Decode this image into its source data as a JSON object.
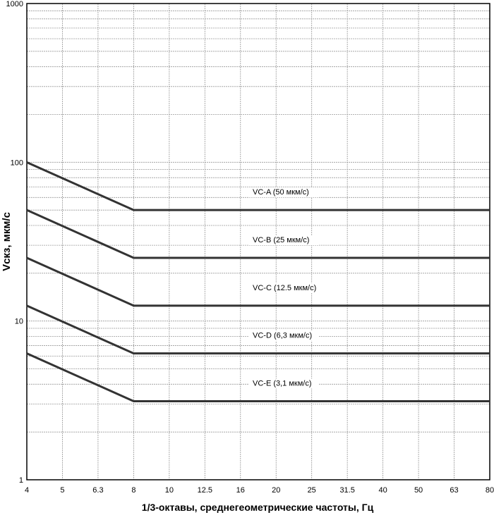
{
  "chart_data": {
    "type": "line",
    "title": "",
    "xlabel": "1/3-октавы, среднегеометрические частоты, Гц",
    "ylabel": "Vскз, мкм/с",
    "x_categories": [
      "4",
      "5",
      "6.3",
      "8",
      "10",
      "12.5",
      "16",
      "20",
      "25",
      "31.5",
      "40",
      "50",
      "63",
      "80"
    ],
    "y_scale": "log",
    "ylim": [
      1,
      1000
    ],
    "y_ticks": [
      "1",
      "10",
      "100",
      "1000"
    ],
    "grid": true,
    "line_color": "#333333",
    "series": [
      {
        "name": "VC-A (50  мкм/с)",
        "points": [
          [
            "4",
            100
          ],
          [
            "8",
            50
          ],
          [
            "80",
            50
          ]
        ]
      },
      {
        "name": "VC-B (25  мкм/с)",
        "points": [
          [
            "4",
            50
          ],
          [
            "8",
            25
          ],
          [
            "80",
            25
          ]
        ]
      },
      {
        "name": "VC-C (12.5  мкм/с)",
        "points": [
          [
            "4",
            25
          ],
          [
            "8",
            12.5
          ],
          [
            "80",
            12.5
          ]
        ]
      },
      {
        "name": "VC-D (6,3 мкм/с)",
        "points": [
          [
            "4",
            12.5
          ],
          [
            "8",
            6.25
          ],
          [
            "80",
            6.25
          ]
        ]
      },
      {
        "name": "VC-E (3,1 мкм/с)",
        "points": [
          [
            "4",
            6.25
          ],
          [
            "8",
            3.125
          ],
          [
            "80",
            3.125
          ]
        ]
      }
    ]
  }
}
